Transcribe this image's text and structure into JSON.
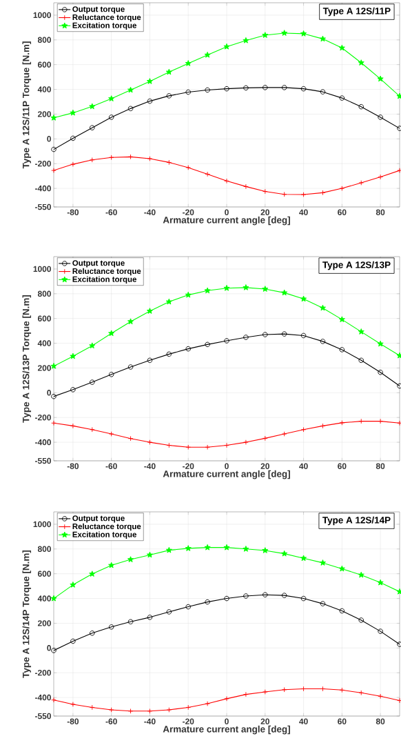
{
  "chart_data": [
    {
      "type": "line",
      "title": "Type A 12S/11P",
      "xlabel": "Armature current angle [deg]",
      "ylabel": "Type A 12S/11P Torque [N.m]",
      "x": [
        -90,
        -80,
        -70,
        -60,
        -50,
        -40,
        -30,
        -20,
        -10,
        0,
        10,
        20,
        30,
        40,
        50,
        60,
        70,
        80,
        90
      ],
      "series": [
        {
          "name": "Output torque",
          "color": "#000000",
          "marker": "circle",
          "values": [
            -85,
            5,
            90,
            175,
            245,
            305,
            348,
            378,
            395,
            405,
            412,
            415,
            415,
            405,
            380,
            330,
            260,
            175,
            85
          ]
        },
        {
          "name": "Reluctance torque",
          "color": "#ff0000",
          "marker": "cross",
          "values": [
            -255,
            -205,
            -170,
            -150,
            -145,
            -160,
            -190,
            -232,
            -285,
            -340,
            -385,
            -425,
            -448,
            -450,
            -435,
            -400,
            -355,
            -308,
            -255
          ]
        },
        {
          "name": "Excitation torque",
          "color": "#00ff00",
          "marker": "star",
          "values": [
            170,
            210,
            262,
            325,
            395,
            465,
            540,
            610,
            678,
            745,
            795,
            838,
            855,
            850,
            808,
            735,
            615,
            485,
            345
          ]
        }
      ],
      "xlim": [
        -90,
        90
      ],
      "ylim": [
        -550,
        1100
      ],
      "xticks": [
        -80,
        -60,
        -40,
        -20,
        0,
        20,
        40,
        60,
        80
      ],
      "yticks": [
        -550,
        -400,
        -200,
        0,
        200,
        400,
        600,
        800,
        1000
      ],
      "grid": true,
      "legend": "top left"
    },
    {
      "type": "line",
      "title": "Type A 12S/13P",
      "xlabel": "Armature current angle [deg]",
      "ylabel": "Type A 12S/13P Torque [N.m]",
      "x": [
        -90,
        -80,
        -70,
        -60,
        -50,
        -40,
        -30,
        -20,
        -10,
        0,
        10,
        20,
        30,
        40,
        50,
        60,
        70,
        80,
        90
      ],
      "series": [
        {
          "name": "Output torque",
          "color": "#000000",
          "marker": "circle",
          "values": [
            -30,
            25,
            85,
            148,
            208,
            262,
            312,
            355,
            390,
            420,
            448,
            470,
            475,
            462,
            415,
            348,
            262,
            165,
            55
          ]
        },
        {
          "name": "Reluctance torque",
          "color": "#ff0000",
          "marker": "cross",
          "values": [
            -245,
            -268,
            -298,
            -333,
            -370,
            -400,
            -425,
            -440,
            -440,
            -425,
            -400,
            -368,
            -333,
            -298,
            -268,
            -243,
            -230,
            -230,
            -245
          ]
        },
        {
          "name": "Excitation torque",
          "color": "#00ff00",
          "marker": "star",
          "values": [
            215,
            295,
            380,
            480,
            575,
            660,
            735,
            790,
            825,
            845,
            850,
            838,
            808,
            758,
            685,
            592,
            493,
            395,
            300
          ]
        }
      ],
      "xlim": [
        -90,
        90
      ],
      "ylim": [
        -550,
        1100
      ],
      "xticks": [
        -80,
        -60,
        -40,
        -20,
        0,
        20,
        40,
        60,
        80
      ],
      "yticks": [
        -550,
        -400,
        -200,
        0,
        200,
        400,
        600,
        800,
        1000
      ],
      "grid": true,
      "legend": "top left"
    },
    {
      "type": "line",
      "title": "Type A 12S/14P",
      "xlabel": "Armature current angle [deg]",
      "ylabel": "Type A 12S/14P Torque [N.m]",
      "x": [
        -90,
        -80,
        -70,
        -60,
        -50,
        -40,
        -30,
        -20,
        -10,
        0,
        10,
        20,
        30,
        40,
        50,
        60,
        70,
        80,
        90
      ],
      "series": [
        {
          "name": "Output torque",
          "color": "#000000",
          "marker": "circle",
          "values": [
            -20,
            55,
            120,
            170,
            212,
            248,
            292,
            333,
            372,
            400,
            420,
            430,
            425,
            400,
            358,
            300,
            225,
            135,
            30
          ]
        },
        {
          "name": "Reluctance torque",
          "color": "#ff0000",
          "marker": "cross",
          "values": [
            -420,
            -455,
            -480,
            -500,
            -510,
            -510,
            -500,
            -480,
            -450,
            -410,
            -375,
            -355,
            -337,
            -330,
            -330,
            -340,
            -362,
            -390,
            -425
          ]
        },
        {
          "name": "Excitation torque",
          "color": "#00ff00",
          "marker": "star",
          "values": [
            400,
            510,
            598,
            668,
            715,
            752,
            790,
            805,
            812,
            812,
            800,
            788,
            762,
            725,
            688,
            640,
            590,
            528,
            455
          ]
        }
      ],
      "xlim": [
        -90,
        90
      ],
      "ylim": [
        -550,
        1100
      ],
      "xticks": [
        -80,
        -60,
        -40,
        -20,
        0,
        20,
        40,
        60,
        80
      ],
      "yticks": [
        -550,
        -400,
        -200,
        0,
        200,
        400,
        600,
        800,
        1000
      ],
      "grid": true,
      "legend": "top left"
    }
  ]
}
